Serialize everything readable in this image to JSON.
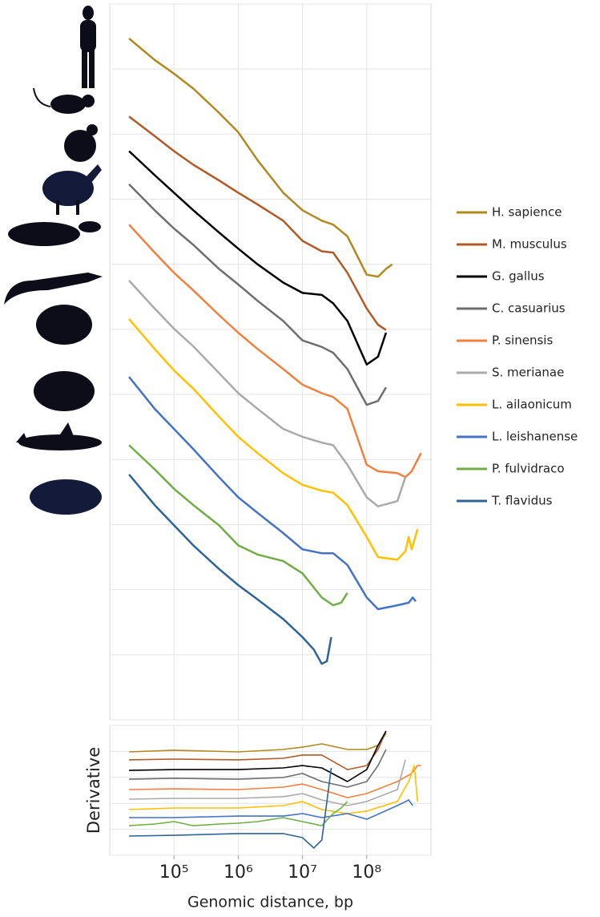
{
  "chart_data": [
    {
      "type": "line",
      "xscale": "log",
      "xlim": [
        10000,
        1000000000
      ],
      "ylim": [
        0,
        11
      ],
      "yticks": [
        0,
        1,
        2,
        3,
        4,
        5,
        6,
        7,
        8,
        9,
        10,
        11
      ],
      "grid": true,
      "legend": "right",
      "series": [
        {
          "name": "H. sapience",
          "color": "#b08a1e",
          "x": [
            20000,
            50000,
            100000,
            200000,
            500000,
            1000000,
            2000000,
            5000000,
            10000000,
            20000000,
            30000000,
            50000000,
            100000000,
            150000000,
            200000000,
            250000000
          ],
          "values": [
            10.47,
            10.14,
            9.93,
            9.7,
            9.33,
            9.03,
            8.6,
            8.1,
            7.83,
            7.67,
            7.61,
            7.43,
            6.84,
            6.81,
            6.93,
            7.0
          ]
        },
        {
          "name": "M. musculus",
          "color": "#b05a28",
          "x": [
            20000,
            50000,
            100000,
            200000,
            500000,
            1000000,
            2000000,
            5000000,
            10000000,
            20000000,
            30000000,
            50000000,
            100000000,
            150000000,
            200000000
          ],
          "values": [
            9.27,
            8.97,
            8.74,
            8.53,
            8.29,
            8.1,
            7.92,
            7.67,
            7.36,
            7.2,
            7.18,
            6.87,
            6.32,
            6.07,
            5.99
          ]
        },
        {
          "name": "G. gallus",
          "color": "#000000",
          "x": [
            20000,
            50000,
            100000,
            200000,
            500000,
            1000000,
            2000000,
            5000000,
            10000000,
            20000000,
            30000000,
            50000000,
            100000000,
            150000000,
            200000000
          ],
          "values": [
            8.74,
            8.37,
            8.1,
            7.83,
            7.49,
            7.24,
            7.0,
            6.72,
            6.56,
            6.53,
            6.4,
            6.13,
            5.46,
            5.58,
            5.95
          ]
        },
        {
          "name": "C. casuarius",
          "color": "#6e6e6e",
          "x": [
            20000,
            50000,
            100000,
            200000,
            500000,
            1000000,
            2000000,
            5000000,
            10000000,
            20000000,
            30000000,
            50000000,
            100000000,
            150000000,
            200000000
          ],
          "values": [
            8.23,
            7.83,
            7.55,
            7.3,
            6.93,
            6.69,
            6.44,
            6.13,
            5.83,
            5.73,
            5.64,
            5.39,
            4.84,
            4.9,
            5.11
          ]
        },
        {
          "name": "P. sinensis",
          "color": "#f08040",
          "x": [
            20000,
            50000,
            100000,
            200000,
            500000,
            1000000,
            2000000,
            5000000,
            10000000,
            20000000,
            30000000,
            50000000,
            100000000,
            150000000,
            300000000,
            400000000,
            500000000,
            700000000
          ],
          "values": [
            7.61,
            7.18,
            6.87,
            6.6,
            6.22,
            5.95,
            5.7,
            5.39,
            5.15,
            5.02,
            4.96,
            4.78,
            3.92,
            3.82,
            3.79,
            3.73,
            3.82,
            4.1
          ]
        },
        {
          "name": "S. merianae",
          "color": "#aaaaaa",
          "x": [
            20000,
            50000,
            100000,
            200000,
            500000,
            1000000,
            2000000,
            5000000,
            10000000,
            20000000,
            30000000,
            50000000,
            100000000,
            150000000,
            300000000,
            400000000
          ],
          "values": [
            6.75,
            6.32,
            6.01,
            5.74,
            5.33,
            5.02,
            4.78,
            4.47,
            4.35,
            4.26,
            4.22,
            3.92,
            3.42,
            3.28,
            3.36,
            3.73
          ]
        },
        {
          "name": "L. ailaonicum",
          "color": "#ffc000",
          "x": [
            20000,
            50000,
            100000,
            200000,
            500000,
            1000000,
            2000000,
            5000000,
            10000000,
            20000000,
            30000000,
            50000000,
            100000000,
            150000000,
            300000000,
            400000000,
            450000000,
            500000000,
            620000000
          ],
          "values": [
            6.16,
            5.7,
            5.37,
            5.09,
            4.66,
            4.35,
            4.1,
            3.79,
            3.61,
            3.52,
            3.49,
            3.3,
            2.81,
            2.5,
            2.46,
            2.59,
            2.81,
            2.62,
            2.93
          ]
        },
        {
          "name": "L. leishanense",
          "color": "#4472c4",
          "x": [
            20000,
            50000,
            100000,
            200000,
            500000,
            1000000,
            2000000,
            5000000,
            10000000,
            20000000,
            30000000,
            50000000,
            100000000,
            150000000,
            300000000,
            450000000,
            520000000,
            580000000
          ],
          "values": [
            5.27,
            4.78,
            4.47,
            4.16,
            3.73,
            3.42,
            3.18,
            2.87,
            2.62,
            2.56,
            2.56,
            2.38,
            1.88,
            1.7,
            1.76,
            1.8,
            1.88,
            1.82
          ]
        },
        {
          "name": "P. fulvidraco",
          "color": "#70ad47",
          "x": [
            20000,
            50000,
            100000,
            200000,
            500000,
            1000000,
            2000000,
            5000000,
            10000000,
            20000000,
            30000000,
            40000000,
            50000000
          ],
          "values": [
            4.22,
            3.85,
            3.55,
            3.3,
            2.99,
            2.68,
            2.54,
            2.44,
            2.25,
            1.88,
            1.76,
            1.8,
            1.95
          ]
        },
        {
          "name": "T. flavidus",
          "color": "#2e6496",
          "x": [
            20000,
            50000,
            100000,
            200000,
            500000,
            1000000,
            2000000,
            5000000,
            10000000,
            15000000,
            20000000,
            24000000,
            28000000
          ],
          "values": [
            3.77,
            3.3,
            2.99,
            2.68,
            2.32,
            2.07,
            1.85,
            1.55,
            1.27,
            1.08,
            0.86,
            0.9,
            1.27
          ]
        }
      ]
    },
    {
      "type": "line",
      "xscale": "log",
      "xlim": [
        10000,
        1000000000
      ],
      "ylim": [
        0,
        10
      ],
      "yticks": [
        0,
        2,
        4,
        6,
        8,
        10
      ],
      "grid": true,
      "ylabel": "Derivative",
      "xlabel": "Genomic distance, bp",
      "xticks": [
        {
          "value": 100000,
          "label": "10⁵"
        },
        {
          "value": 1000000,
          "label": "10⁶"
        },
        {
          "value": 10000000,
          "label": "10⁷"
        },
        {
          "value": 100000000,
          "label": "10⁸"
        }
      ],
      "series": [
        {
          "color": "#b08a1e",
          "x": [
            20000,
            100000,
            1000000,
            5000000,
            10000000,
            20000000,
            50000000,
            100000000,
            150000000,
            200000000
          ],
          "values": [
            7.96,
            8.09,
            7.96,
            8.15,
            8.33,
            8.58,
            8.15,
            8.15,
            8.46,
            9.38
          ]
        },
        {
          "color": "#b05a28",
          "x": [
            20000,
            100000,
            1000000,
            5000000,
            10000000,
            20000000,
            50000000,
            100000000,
            150000000,
            200000000
          ],
          "values": [
            7.35,
            7.41,
            7.35,
            7.47,
            7.72,
            7.72,
            6.6,
            6.91,
            8.15,
            9.57
          ]
        },
        {
          "color": "#000000",
          "x": [
            20000,
            100000,
            1000000,
            5000000,
            10000000,
            20000000,
            50000000,
            100000000,
            150000000,
            200000000
          ],
          "values": [
            6.54,
            6.6,
            6.6,
            6.73,
            6.91,
            6.73,
            5.68,
            6.6,
            8.46,
            9.57
          ]
        },
        {
          "color": "#6e6e6e",
          "x": [
            20000,
            100000,
            1000000,
            5000000,
            10000000,
            20000000,
            50000000,
            100000000,
            150000000,
            200000000
          ],
          "values": [
            5.86,
            5.93,
            5.86,
            5.99,
            6.3,
            5.68,
            5.25,
            5.68,
            6.91,
            8.15
          ]
        },
        {
          "color": "#f08040",
          "x": [
            20000,
            100000,
            1000000,
            5000000,
            10000000,
            20000000,
            50000000,
            100000000,
            300000000,
            500000000,
            620000000,
            700000000
          ],
          "values": [
            5.06,
            5.12,
            5.06,
            5.25,
            5.49,
            5.06,
            4.44,
            4.75,
            5.68,
            6.3,
            6.91,
            6.91
          ]
        },
        {
          "color": "#aaaaaa",
          "x": [
            20000,
            100000,
            1000000,
            5000000,
            10000000,
            20000000,
            50000000,
            100000000,
            300000000,
            400000000
          ],
          "values": [
            4.32,
            4.38,
            4.38,
            4.51,
            4.75,
            4.26,
            3.83,
            4.14,
            5.06,
            7.35
          ]
        },
        {
          "color": "#ffc000",
          "x": [
            20000,
            100000,
            1000000,
            5000000,
            10000000,
            20000000,
            50000000,
            100000000,
            300000000,
            450000000,
            550000000,
            620000000
          ],
          "values": [
            3.52,
            3.64,
            3.64,
            3.83,
            4.14,
            3.52,
            3.21,
            3.4,
            4.14,
            5.68,
            6.91,
            4.14
          ]
        },
        {
          "color": "#4472c4",
          "x": [
            20000,
            100000,
            1000000,
            5000000,
            10000000,
            20000000,
            50000000,
            100000000,
            300000000,
            450000000,
            520000000
          ],
          "values": [
            2.9,
            2.9,
            3.02,
            3.02,
            3.21,
            2.9,
            3.21,
            2.78,
            3.83,
            4.26,
            3.83
          ]
        },
        {
          "color": "#70ad47",
          "x": [
            20000,
            50000,
            100000,
            200000,
            500000,
            1000000,
            2000000,
            5000000,
            10000000,
            20000000,
            30000000,
            40000000,
            50000000
          ],
          "values": [
            2.28,
            2.41,
            2.59,
            2.28,
            2.41,
            2.47,
            2.59,
            2.9,
            2.59,
            2.28,
            3.21,
            3.64,
            4.14
          ]
        },
        {
          "color": "#2e6496",
          "x": [
            20000,
            100000,
            1000000,
            5000000,
            10000000,
            15000000,
            20000000,
            24000000,
            28000000
          ],
          "values": [
            1.48,
            1.54,
            1.67,
            1.67,
            1.36,
            0.56,
            1.17,
            4.14,
            6.73
          ]
        }
      ]
    }
  ]
}
